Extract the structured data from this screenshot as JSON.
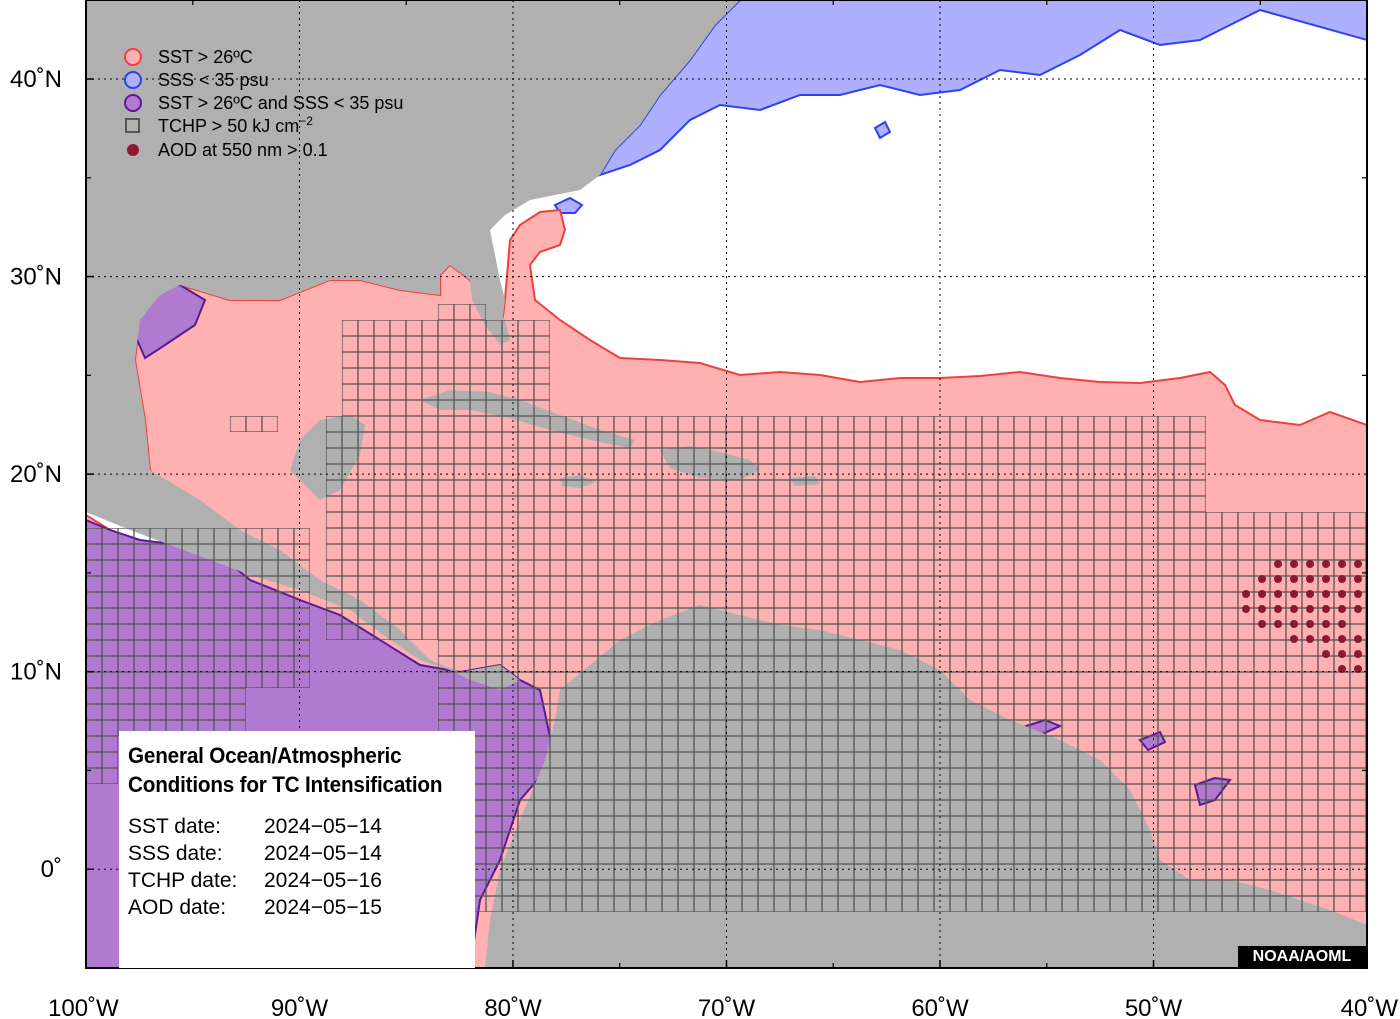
{
  "map": {
    "lon_range": [
      -100,
      -40
    ],
    "lat_range": [
      -5,
      44
    ],
    "lon_ticks": [
      {
        "lon": -100,
        "label": "100˚W"
      },
      {
        "lon": -90,
        "label": "90˚W"
      },
      {
        "lon": -80,
        "label": "80˚W"
      },
      {
        "lon": -70,
        "label": "70˚W"
      },
      {
        "lon": -60,
        "label": "60˚W"
      },
      {
        "lon": -50,
        "label": "50˚W"
      },
      {
        "lon": -40,
        "label": "40˚W"
      }
    ],
    "lat_ticks": [
      {
        "lat": 0,
        "label": "0˚"
      },
      {
        "lat": 10,
        "label": "10˚N"
      },
      {
        "lat": 20,
        "label": "20˚N"
      },
      {
        "lat": 30,
        "label": "30˚N"
      },
      {
        "lat": 40,
        "label": "40˚N"
      }
    ],
    "grid": true,
    "colors": {
      "land": "#b0b0b0",
      "ocean": "#ffffff",
      "sst_fill": "#ffb0b0",
      "sst_line": "#ef4040",
      "sss_fill": "#aeb0ff",
      "sss_line": "#3040f0",
      "both_fill": "#b07ad0",
      "both_line": "#5a1a90",
      "tchp_line": "#555555",
      "aod_dot": "#8b1a2e"
    }
  },
  "legend": {
    "items": [
      {
        "symbol": "sst-circle",
        "label": "SST > 26ºC"
      },
      {
        "symbol": "sss-circle",
        "label": "SSS < 35 psu"
      },
      {
        "symbol": "both-circle",
        "label": "SST > 26ºC and SSS < 35 psu"
      },
      {
        "symbol": "tchp-square",
        "label": "TCHP > 50 kJ cm",
        "sup": "−2"
      },
      {
        "symbol": "aod-dot",
        "label": "AOD at 550 nm > 0.1"
      }
    ]
  },
  "info": {
    "title_line1": "General Ocean/Atmospheric",
    "title_line2": "Conditions for TC Intensification",
    "dates": [
      {
        "label": "SST date:",
        "value": "2024−05−14"
      },
      {
        "label": "SSS date:",
        "value": "2024−05−14"
      },
      {
        "label": "TCHP date:",
        "value": "2024−05−16"
      },
      {
        "label": "AOD date:",
        "value": "2024−05−15"
      }
    ]
  },
  "credit": "NOAA/AOML"
}
